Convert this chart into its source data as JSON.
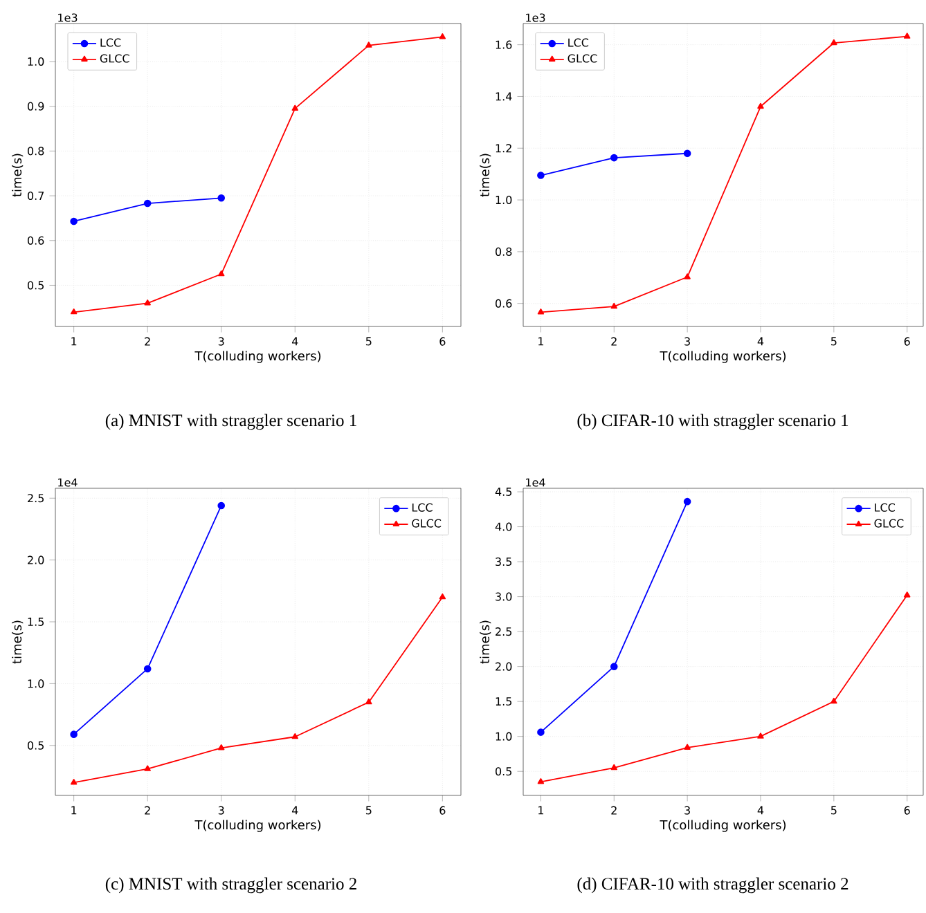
{
  "chart_data": [
    {
      "type": "line",
      "xlabel": "T(colluding workers)",
      "ylabel": "time(s)",
      "x": [
        1,
        2,
        3,
        4,
        5,
        6
      ],
      "xlim": [
        0.75,
        6.25
      ],
      "ylim": [
        0.408,
        1.085
      ],
      "xticks": [
        1,
        2,
        3,
        4,
        5,
        6
      ],
      "yticks": [
        0.5,
        0.6,
        0.7,
        0.8,
        0.9,
        {
          "value": 1,
          "label": "1.0"
        }
      ],
      "grid": true,
      "legend": "top left",
      "annotations": [
        "1e3",
        "(a)  MNIST with straggler scenario 1"
      ],
      "series": [
        {
          "name": "LCC",
          "color": "#0000ff",
          "marker": "circle",
          "x": [
            1,
            2,
            3
          ],
          "values": [
            0.643,
            0.683,
            0.695
          ]
        },
        {
          "name": "GLCC",
          "color": "#ff0000",
          "marker": "triangle",
          "values": [
            0.44,
            0.46,
            0.525,
            0.895,
            1.036,
            1.055
          ]
        }
      ]
    },
    {
      "type": "line",
      "xlabel": "T(colluding workers)",
      "ylabel": "time(s)",
      "x": [
        1,
        2,
        3,
        4,
        5,
        6
      ],
      "xlim": [
        0.76,
        6.22
      ],
      "ylim": [
        0.511,
        1.682
      ],
      "xticks": [
        1,
        2,
        3,
        4,
        5,
        6
      ],
      "yticks": [
        0.6,
        0.8,
        {
          "value": 1,
          "label": "1.0"
        },
        1.2,
        1.4,
        1.6
      ],
      "grid": true,
      "legend": "top left",
      "annotations": [
        "1e3",
        "(b)  CIFAR-10 with straggler scenario 1"
      ],
      "series": [
        {
          "name": "LCC",
          "color": "#0000ff",
          "marker": "circle",
          "x": [
            1,
            2,
            3
          ],
          "values": [
            1.095,
            1.163,
            1.18
          ]
        },
        {
          "name": "GLCC",
          "color": "#ff0000",
          "marker": "triangle",
          "values": [
            0.566,
            0.588,
            0.702,
            1.361,
            1.607,
            1.632
          ]
        }
      ]
    },
    {
      "type": "line",
      "xlabel": "T(colluding workers)",
      "ylabel": "time(s)",
      "x": [
        1,
        2,
        3,
        4,
        5,
        6
      ],
      "xlim": [
        0.75,
        6.25
      ],
      "ylim": [
        0.096,
        2.58
      ],
      "xticks": [
        1,
        2,
        3,
        4,
        5,
        6
      ],
      "yticks": [
        0.5,
        {
          "value": 1,
          "label": "1.0"
        },
        1.5,
        {
          "value": 2,
          "label": "2.0"
        },
        2.5
      ],
      "grid": true,
      "legend": "top right",
      "annotations": [
        "1e4",
        "(c)  MNIST with straggler scenario 2"
      ],
      "series": [
        {
          "name": "LCC",
          "color": "#0000ff",
          "marker": "circle",
          "x": [
            1,
            2,
            3
          ],
          "values": [
            0.59,
            1.12,
            2.44
          ]
        },
        {
          "name": "GLCC",
          "color": "#ff0000",
          "marker": "triangle",
          "values": [
            0.2,
            0.31,
            0.48,
            0.57,
            0.85,
            1.7
          ]
        }
      ]
    },
    {
      "type": "line",
      "xlabel": "T(colluding workers)",
      "ylabel": "time(s)",
      "x": [
        1,
        2,
        3,
        4,
        5,
        6
      ],
      "xlim": [
        0.76,
        6.22
      ],
      "ylim": [
        0.156,
        4.55
      ],
      "xticks": [
        1,
        2,
        3,
        4,
        5,
        6
      ],
      "yticks": [
        0.5,
        {
          "value": 1,
          "label": "1.0"
        },
        1.5,
        {
          "value": 2,
          "label": "2.0"
        },
        2.5,
        {
          "value": 3,
          "label": "3.0"
        },
        3.5,
        {
          "value": 4,
          "label": "4.0"
        },
        4.5
      ],
      "grid": true,
      "legend": "top right",
      "annotations": [
        "1e4",
        "(d)  CIFAR-10 with straggler scenario 2"
      ],
      "series": [
        {
          "name": "LCC",
          "color": "#0000ff",
          "marker": "circle",
          "x": [
            1,
            2,
            3
          ],
          "values": [
            1.06,
            2.0,
            4.36
          ]
        },
        {
          "name": "GLCC",
          "color": "#ff0000",
          "marker": "triangle",
          "values": [
            0.35,
            0.55,
            0.84,
            1.0,
            1.5,
            3.02
          ]
        }
      ]
    }
  ]
}
